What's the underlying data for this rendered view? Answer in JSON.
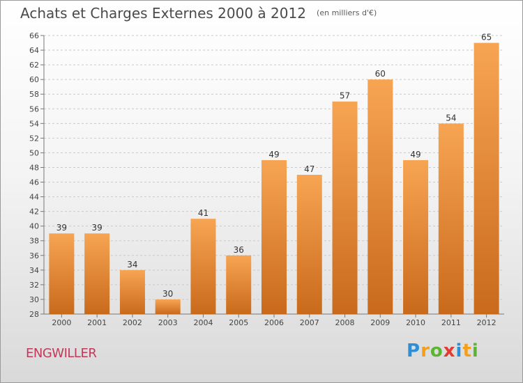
{
  "chart_data": {
    "type": "bar",
    "title": "Achats et Charges Externes 2000 à 2012",
    "unit": "(en milliers d'€)",
    "categories": [
      "2000",
      "2001",
      "2002",
      "2003",
      "2004",
      "2005",
      "2006",
      "2007",
      "2008",
      "2009",
      "2010",
      "2011",
      "2012"
    ],
    "values": [
      39,
      39,
      34,
      30,
      41,
      36,
      49,
      47,
      57,
      60,
      49,
      54,
      65
    ],
    "ylim": [
      28,
      66
    ],
    "yticks": [
      28,
      30,
      32,
      34,
      36,
      38,
      40,
      42,
      44,
      46,
      48,
      50,
      52,
      54,
      56,
      58,
      60,
      62,
      64,
      66
    ],
    "grid": true,
    "bar_color_top": "#f7a553",
    "bar_color_bottom": "#c96a1b"
  },
  "commune": "ENGWILLER",
  "logo": {
    "text": "Proxiti",
    "letters": [
      {
        "ch": "P",
        "color": "#2f8fd6"
      },
      {
        "ch": "r",
        "color": "#f2a01c"
      },
      {
        "ch": "o",
        "color": "#5bb533"
      },
      {
        "ch": "x",
        "color": "#e23b2f"
      },
      {
        "ch": "i",
        "color": "#2f8fd6"
      },
      {
        "ch": "t",
        "color": "#f2a01c"
      },
      {
        "ch": "i",
        "color": "#5bb533"
      }
    ]
  }
}
